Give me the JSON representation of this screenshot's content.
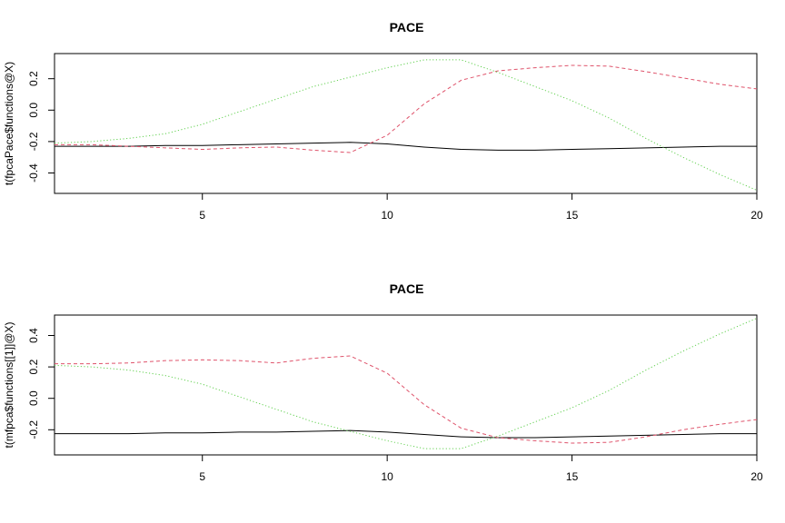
{
  "chart_data": [
    {
      "type": "line",
      "title": "PACE",
      "xlabel": "",
      "ylabel": "t(fpcaPace$functions@X)",
      "x": [
        1,
        2,
        3,
        4,
        5,
        6,
        7,
        8,
        9,
        10,
        11,
        12,
        13,
        14,
        15,
        16,
        17,
        18,
        19,
        20
      ],
      "xlim": [
        1,
        20
      ],
      "ylim": [
        -0.53,
        0.36
      ],
      "xticks": [
        5,
        10,
        15,
        20
      ],
      "yticks": [
        -0.4,
        -0.2,
        0.0,
        0.2
      ],
      "xtick_labels": [
        "5",
        "10",
        "15",
        "20"
      ],
      "ytick_labels": [
        "-0.4",
        "-0.2",
        "0.0",
        "0.2"
      ],
      "grid": false,
      "series": [
        {
          "color": "#000000",
          "dash": "solid",
          "values": [
            -0.23,
            -0.23,
            -0.23,
            -0.225,
            -0.225,
            -0.22,
            -0.215,
            -0.21,
            -0.205,
            -0.215,
            -0.235,
            -0.25,
            -0.255,
            -0.255,
            -0.25,
            -0.245,
            -0.24,
            -0.235,
            -0.23,
            -0.23
          ]
        },
        {
          "color": "#DF536B",
          "dash": "dashed",
          "values": [
            -0.22,
            -0.22,
            -0.23,
            -0.24,
            -0.25,
            -0.24,
            -0.235,
            -0.255,
            -0.27,
            -0.16,
            0.04,
            0.19,
            0.25,
            0.27,
            0.285,
            0.28,
            0.245,
            0.205,
            0.165,
            0.135
          ]
        },
        {
          "color": "#61D04F",
          "dash": "dotted",
          "values": [
            -0.21,
            -0.2,
            -0.18,
            -0.15,
            -0.09,
            -0.01,
            0.07,
            0.15,
            0.21,
            0.27,
            0.32,
            0.32,
            0.24,
            0.15,
            0.06,
            -0.05,
            -0.18,
            -0.3,
            -0.41,
            -0.51
          ]
        }
      ]
    },
    {
      "type": "line",
      "title": "PACE",
      "xlabel": "",
      "ylabel": "t(mfpca$functions[[1]]@X)",
      "x": [
        1,
        2,
        3,
        4,
        5,
        6,
        7,
        8,
        9,
        10,
        11,
        12,
        13,
        14,
        15,
        16,
        17,
        18,
        19,
        20
      ],
      "xlim": [
        1,
        20
      ],
      "ylim": [
        -0.36,
        0.53
      ],
      "xticks": [
        5,
        10,
        15,
        20
      ],
      "yticks": [
        -0.2,
        0.0,
        0.2,
        0.4
      ],
      "xtick_labels": [
        "5",
        "10",
        "15",
        "20"
      ],
      "ytick_labels": [
        "-0.2",
        "0.0",
        "0.2",
        "0.4"
      ],
      "grid": false,
      "series": [
        {
          "color": "#000000",
          "dash": "solid",
          "values": [
            -0.225,
            -0.225,
            -0.225,
            -0.22,
            -0.22,
            -0.215,
            -0.215,
            -0.21,
            -0.205,
            -0.215,
            -0.23,
            -0.245,
            -0.25,
            -0.25,
            -0.245,
            -0.24,
            -0.235,
            -0.23,
            -0.225,
            -0.225
          ]
        },
        {
          "color": "#DF536B",
          "dash": "dashed",
          "values": [
            0.22,
            0.22,
            0.225,
            0.24,
            0.245,
            0.24,
            0.225,
            0.255,
            0.27,
            0.16,
            -0.04,
            -0.19,
            -0.25,
            -0.27,
            -0.285,
            -0.28,
            -0.245,
            -0.2,
            -0.165,
            -0.135
          ]
        },
        {
          "color": "#61D04F",
          "dash": "dotted",
          "values": [
            0.21,
            0.2,
            0.18,
            0.145,
            0.09,
            0.01,
            -0.07,
            -0.15,
            -0.21,
            -0.27,
            -0.32,
            -0.32,
            -0.24,
            -0.15,
            -0.06,
            0.05,
            0.18,
            0.3,
            0.41,
            0.51
          ]
        }
      ]
    }
  ]
}
